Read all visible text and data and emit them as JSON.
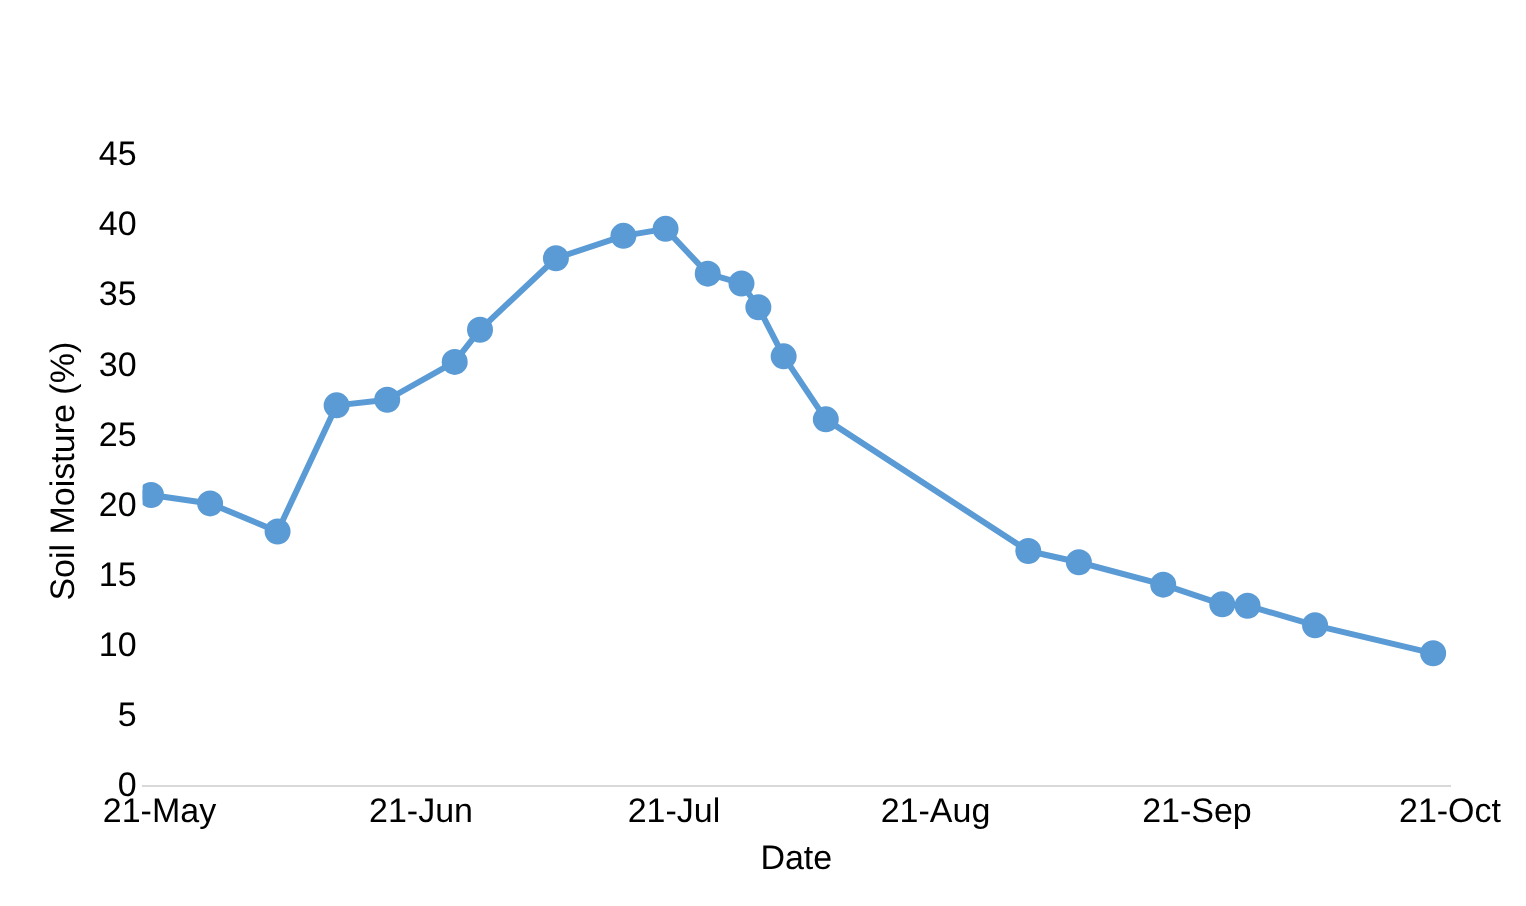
{
  "chart_data": {
    "type": "line",
    "xlabel": "Date",
    "ylabel": "Soil Moisture (%)",
    "x": [
      "--05-20",
      "--05-27",
      "--06-04",
      "--06-11",
      "--06-17",
      "--06-25",
      "--06-28",
      "--07-07",
      "--07-15",
      "--07-20",
      "--07-25",
      "--07-29",
      "--07-31",
      "--08-03",
      "--08-08",
      "--09-01",
      "--09-07",
      "--09-17",
      "--09-24",
      "--09-27",
      "--10-05",
      "--10-19"
    ],
    "series": [
      {
        "color": "#5b9bd5",
        "values": [
          20.8,
          20.2,
          18.2,
          27.2,
          27.6,
          30.3,
          32.6,
          37.7,
          39.3,
          39.8,
          36.6,
          35.9,
          34.2,
          30.7,
          26.2,
          16.8,
          16.0,
          14.4,
          13.0,
          12.9,
          11.5,
          9.5
        ]
      }
    ],
    "xlim": [
      "--05-19",
      "--10-21"
    ],
    "xticks": [
      {
        "value": "--05-21",
        "label": "21-May"
      },
      {
        "value": "--06-21",
        "label": "21-Jun"
      },
      {
        "value": "--07-21",
        "label": "21-Jul"
      },
      {
        "value": "--08-21",
        "label": "21-Aug"
      },
      {
        "value": "--09-21",
        "label": "21-Sep"
      },
      {
        "value": "--10-21",
        "label": "21-Oct"
      }
    ],
    "ylim": [
      0,
      45
    ],
    "yticks": [
      0,
      5,
      10,
      15,
      20,
      25,
      30,
      35,
      40,
      45
    ],
    "grid": false,
    "legend": false,
    "marker": "circle",
    "line_style": "solid"
  }
}
